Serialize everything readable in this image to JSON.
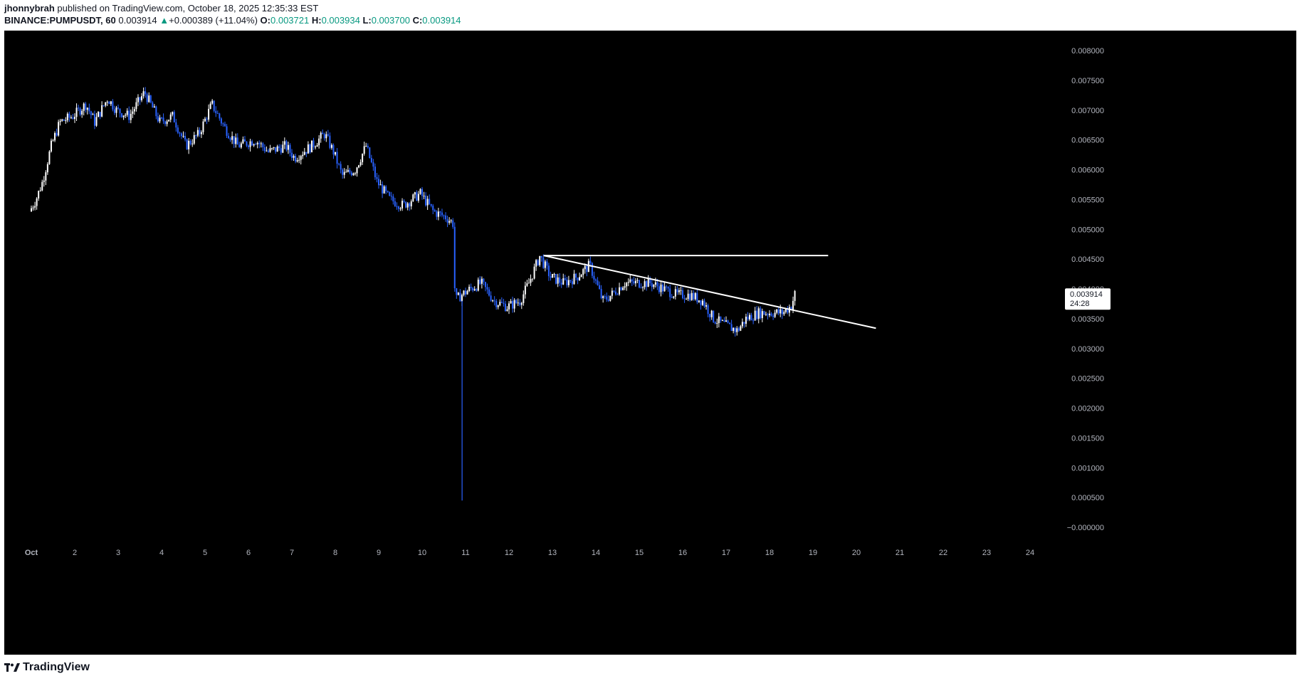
{
  "header": {
    "author": "jhonnybrah",
    "published_text": "published on TradingView.com, October 18, 2025 12:35:33 EST",
    "symbol": "BINANCE:PUMPUSDT, 60",
    "last_price": "0.003914",
    "change": "+0.000389 (+11.04%)",
    "change_arrow": "▲",
    "o_label": "O:",
    "o_value": "0.003721",
    "h_label": "H:",
    "h_value": "0.003934",
    "l_label": "L:",
    "l_value": "0.003700",
    "c_label": "C:",
    "c_value": "0.003914"
  },
  "footer": {
    "brand": "TradingView"
  },
  "colors": {
    "background": "#000000",
    "up_candle": "#ffffff",
    "down_candle": "#2962ff",
    "trendline": "#ffffff",
    "axis_text": "#b2b5be"
  },
  "chart_data": {
    "type": "candlestick",
    "timeframe": "60",
    "x_ticks": [
      "Oct",
      "2",
      "3",
      "4",
      "5",
      "6",
      "7",
      "8",
      "9",
      "10",
      "11",
      "12",
      "13",
      "14",
      "15",
      "16",
      "17",
      "18",
      "19",
      "20",
      "21",
      "22",
      "23",
      "24"
    ],
    "y_ticks": [
      "0.008000",
      "0.007500",
      "0.007000",
      "0.006500",
      "0.006000",
      "0.005500",
      "0.005000",
      "0.004500",
      "0.004000",
      "0.003500",
      "0.003000",
      "0.002500",
      "0.002000",
      "0.001500",
      "0.001000",
      "0.000500",
      "−0.000000"
    ],
    "ylim": [
      -0.0001,
      0.0084
    ],
    "price_path": [
      [
        1.0,
        0.0053
      ],
      [
        1.15,
        0.0055
      ],
      [
        1.3,
        0.0058
      ],
      [
        1.5,
        0.0064
      ],
      [
        1.7,
        0.0068
      ],
      [
        2.0,
        0.0069
      ],
      [
        2.3,
        0.0071
      ],
      [
        2.5,
        0.0068
      ],
      [
        2.8,
        0.0072
      ],
      [
        3.0,
        0.007
      ],
      [
        3.3,
        0.0069
      ],
      [
        3.65,
        0.0073
      ],
      [
        4.0,
        0.0068
      ],
      [
        4.3,
        0.0069
      ],
      [
        4.6,
        0.0064
      ],
      [
        4.9,
        0.0066
      ],
      [
        5.2,
        0.0071
      ],
      [
        5.5,
        0.0067
      ],
      [
        5.8,
        0.0064
      ],
      [
        6.2,
        0.0065
      ],
      [
        6.5,
        0.0063
      ],
      [
        6.9,
        0.0064
      ],
      [
        7.1,
        0.0062
      ],
      [
        7.5,
        0.0064
      ],
      [
        7.8,
        0.0066
      ],
      [
        8.0,
        0.0063
      ],
      [
        8.2,
        0.0059
      ],
      [
        8.5,
        0.006
      ],
      [
        8.75,
        0.0064
      ],
      [
        9.0,
        0.0058
      ],
      [
        9.3,
        0.0055
      ],
      [
        9.6,
        0.0054
      ],
      [
        10.0,
        0.0056
      ],
      [
        10.3,
        0.0053
      ],
      [
        10.6,
        0.0052
      ],
      [
        10.75,
        0.0051
      ],
      [
        10.8,
        0.0038
      ],
      [
        10.95,
        0.0039
      ],
      [
        11.15,
        0.004
      ],
      [
        11.4,
        0.0041
      ],
      [
        11.7,
        0.0038
      ],
      [
        12.0,
        0.0037
      ],
      [
        12.3,
        0.0038
      ],
      [
        12.5,
        0.0041
      ],
      [
        12.75,
        0.00455
      ],
      [
        13.0,
        0.0042
      ],
      [
        13.3,
        0.0041
      ],
      [
        13.6,
        0.0042
      ],
      [
        13.9,
        0.0044
      ],
      [
        14.2,
        0.0038
      ],
      [
        14.4,
        0.0039
      ],
      [
        14.7,
        0.0041
      ],
      [
        15.0,
        0.0041
      ],
      [
        15.3,
        0.0041
      ],
      [
        15.6,
        0.004
      ],
      [
        15.9,
        0.0039
      ],
      [
        16.2,
        0.0039
      ],
      [
        16.5,
        0.0038
      ],
      [
        16.75,
        0.0035
      ],
      [
        17.0,
        0.0034
      ],
      [
        17.3,
        0.0033
      ],
      [
        17.5,
        0.0035
      ],
      [
        17.8,
        0.0036
      ],
      [
        18.1,
        0.0036
      ],
      [
        18.35,
        0.0036
      ],
      [
        18.55,
        0.00372
      ],
      [
        18.62,
        0.003914
      ]
    ],
    "wick_low": {
      "x": 10.92,
      "low": 0.00045,
      "high": 0.0038
    },
    "annotations": {
      "horizontal_line": {
        "y": 0.00456,
        "x_start": 12.8,
        "x_end": 19.35
      },
      "trend_line": {
        "x1": 12.8,
        "y1": 0.00456,
        "x2": 20.45,
        "y2": 0.00334
      }
    },
    "last_price_label": {
      "price": "0.003914",
      "countdown": "24:28"
    }
  }
}
